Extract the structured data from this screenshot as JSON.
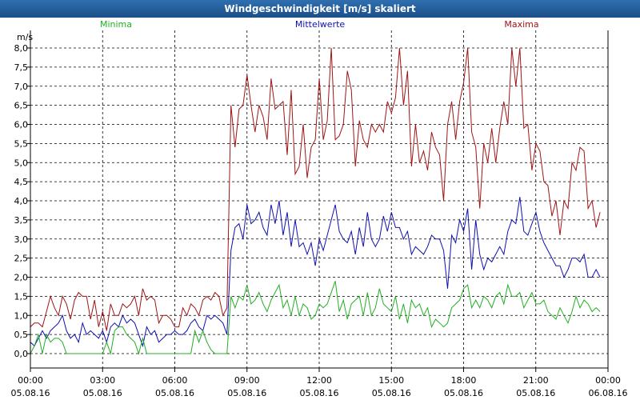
{
  "window": {
    "title": "Windgeschwindigkeit [m/s] skaliert"
  },
  "colors": {
    "minima": "#22b022",
    "mittel": "#1010b0",
    "maxima": "#a01414",
    "grid": "#000000",
    "titlebar": "#2a64a6"
  },
  "chart_data": {
    "type": "line",
    "title": "Windgeschwindigkeit [m/s] skaliert",
    "ylabel": "m/s",
    "ylim": [
      0,
      8
    ],
    "yticks": [
      "0,0",
      "0,5",
      "1,0",
      "1,5",
      "2,0",
      "2,5",
      "3,0",
      "3,5",
      "4,0",
      "4,5",
      "5,0",
      "5,5",
      "6,0",
      "6,5",
      "7,0",
      "7,5",
      "8,0"
    ],
    "xlim_hours": [
      0,
      24
    ],
    "xticks": [
      {
        "time": "00:00",
        "date": "05.08.16"
      },
      {
        "time": "03:00",
        "date": "05.08.16"
      },
      {
        "time": "06:00",
        "date": "05.08.16"
      },
      {
        "time": "09:00",
        "date": "05.08.16"
      },
      {
        "time": "12:00",
        "date": "05.08.16"
      },
      {
        "time": "15:00",
        "date": "05.08.16"
      },
      {
        "time": "18:00",
        "date": "05.08.16"
      },
      {
        "time": "21:00",
        "date": "05.08.16"
      },
      {
        "time": "00:00",
        "date": "06.08.16"
      }
    ],
    "legend": [
      "Minima",
      "Mittelwerte",
      "Maxima"
    ],
    "sample_interval_hours": 0.1667,
    "series": [
      {
        "name": "Maxima",
        "color": "#a01414",
        "values": [
          0.7,
          0.8,
          0.8,
          0.7,
          1.1,
          1.5,
          1.2,
          1.0,
          1.5,
          1.3,
          0.9,
          1.4,
          1.6,
          1.5,
          1.5,
          0.9,
          1.4,
          0.7,
          1.1,
          0.6,
          1.3,
          1.0,
          1.0,
          1.3,
          1.2,
          1.3,
          1.5,
          1.0,
          1.7,
          1.4,
          1.5,
          1.4,
          0.8,
          1.0,
          1.0,
          0.9,
          0.7,
          0.7,
          1.2,
          1.0,
          1.3,
          1.2,
          1.0,
          1.4,
          1.5,
          1.4,
          1.6,
          1.5,
          1.0,
          1.2,
          6.5,
          5.4,
          6.4,
          6.5,
          7.3,
          6.5,
          5.8,
          6.5,
          6.2,
          5.6,
          7.2,
          6.4,
          6.5,
          6.6,
          5.2,
          6.9,
          4.7,
          4.9,
          6.0,
          4.6,
          5.4,
          5.6,
          7.2,
          5.6,
          6.1,
          8.0,
          5.6,
          5.7,
          6.0,
          7.4,
          6.9,
          4.9,
          6.1,
          5.6,
          5.4,
          6.0,
          5.8,
          6.0,
          5.8,
          6.6,
          6.3,
          6.7,
          8.0,
          6.5,
          7.4,
          4.9,
          6.0,
          5.0,
          5.3,
          4.8,
          5.8,
          5.4,
          5.2,
          4.0,
          6.0,
          6.6,
          5.6,
          6.6,
          7.1,
          8.0,
          5.8,
          5.4,
          3.8,
          5.5,
          5.0,
          5.9,
          5.0,
          5.9,
          6.6,
          6.0,
          8.0,
          7.0,
          8.0,
          5.9,
          6.0,
          4.8,
          5.5,
          5.3,
          4.5,
          4.4,
          3.6,
          4.0,
          3.1,
          4.0,
          3.8,
          5.0,
          4.8,
          5.4,
          5.3,
          3.8,
          4.0,
          3.3,
          3.7
        ]
      },
      {
        "name": "Mittelwerte",
        "color": "#1010b0",
        "values": [
          0.3,
          0.2,
          0.4,
          0.6,
          0.4,
          0.6,
          0.7,
          0.8,
          1.0,
          0.6,
          0.4,
          0.5,
          0.3,
          0.8,
          0.5,
          0.6,
          0.5,
          0.4,
          0.6,
          0.3,
          0.7,
          0.8,
          0.7,
          1.0,
          0.8,
          0.9,
          0.8,
          0.5,
          0.2,
          0.7,
          0.5,
          0.6,
          0.3,
          0.4,
          0.5,
          0.5,
          0.6,
          0.5,
          0.5,
          0.6,
          0.8,
          0.9,
          0.7,
          0.6,
          1.0,
          0.9,
          1.0,
          0.9,
          0.8,
          0.5,
          2.7,
          3.3,
          3.4,
          3.0,
          3.9,
          3.4,
          3.5,
          3.7,
          3.3,
          3.1,
          3.9,
          3.4,
          4.0,
          3.1,
          3.7,
          2.8,
          3.5,
          2.8,
          2.9,
          2.6,
          2.9,
          2.3,
          3.0,
          2.7,
          3.1,
          3.5,
          3.9,
          3.2,
          3.0,
          2.9,
          3.2,
          2.6,
          3.3,
          2.8,
          3.7,
          3.0,
          2.8,
          3.0,
          3.6,
          3.2,
          3.7,
          3.3,
          3.3,
          3.0,
          3.2,
          2.6,
          2.8,
          2.7,
          2.6,
          2.8,
          3.1,
          3.0,
          3.0,
          2.7,
          1.7,
          3.1,
          2.9,
          3.5,
          3.2,
          3.8,
          2.2,
          3.5,
          2.6,
          2.2,
          2.5,
          2.4,
          2.6,
          2.8,
          2.6,
          3.2,
          3.5,
          3.4,
          4.1,
          3.2,
          3.1,
          3.4,
          3.7,
          3.2,
          2.9,
          2.7,
          2.5,
          2.3,
          2.3,
          2.0,
          2.2,
          2.5,
          2.5,
          2.4,
          2.6,
          2.0,
          2.0,
          2.2,
          2.0
        ]
      },
      {
        "name": "Minima",
        "color": "#22b022",
        "values": [
          0.0,
          0.2,
          0.5,
          0.0,
          0.5,
          0.3,
          0.4,
          0.4,
          0.3,
          0.0,
          0.0,
          0.0,
          0.0,
          0.0,
          0.0,
          0.0,
          0.0,
          0.0,
          0.0,
          0.3,
          0.0,
          0.6,
          0.7,
          0.7,
          0.5,
          0.4,
          0.3,
          0.0,
          0.4,
          0.0,
          0.0,
          0.0,
          0.0,
          0.0,
          0.0,
          0.0,
          0.0,
          0.0,
          0.0,
          0.0,
          0.0,
          0.6,
          0.3,
          0.6,
          0.3,
          0.1,
          0.0,
          0.0,
          0.0,
          0.0,
          1.5,
          1.2,
          1.5,
          1.4,
          1.8,
          1.3,
          1.4,
          1.6,
          1.3,
          1.1,
          1.4,
          1.6,
          1.8,
          1.2,
          1.4,
          1.0,
          1.5,
          1.0,
          1.3,
          1.2,
          0.9,
          1.0,
          1.3,
          1.2,
          1.3,
          1.6,
          1.9,
          1.1,
          1.4,
          0.9,
          1.3,
          1.4,
          1.5,
          1.0,
          1.6,
          1.0,
          1.2,
          1.7,
          1.3,
          1.2,
          1.1,
          1.5,
          0.9,
          1.3,
          0.8,
          1.4,
          1.2,
          1.3,
          1.0,
          1.2,
          0.7,
          0.9,
          0.8,
          0.7,
          0.8,
          1.2,
          1.3,
          1.4,
          1.7,
          1.8,
          1.2,
          1.4,
          1.2,
          1.5,
          1.4,
          1.2,
          1.5,
          1.6,
          1.3,
          1.8,
          1.5,
          1.5,
          1.6,
          1.2,
          1.4,
          1.6,
          1.3,
          1.3,
          1.4,
          1.1,
          1.0,
          0.9,
          1.2,
          1.0,
          0.8,
          1.1,
          1.5,
          1.2,
          1.4,
          1.3,
          1.1,
          1.2,
          1.1
        ]
      }
    ]
  }
}
